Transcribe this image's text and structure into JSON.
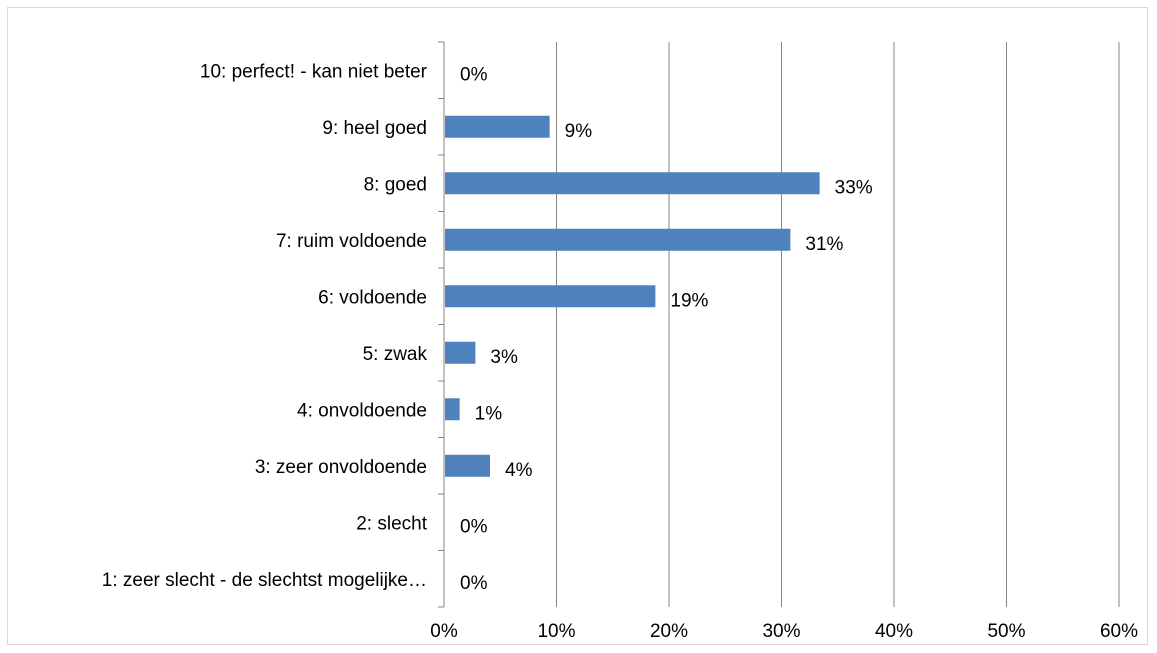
{
  "chart_data": {
    "type": "bar",
    "orientation": "horizontal",
    "categories": [
      "10: perfect! - kan niet beter",
      "9: heel goed",
      "8: goed",
      "7: ruim voldoende",
      "6: voldoende",
      "5: zwak",
      "4: onvoldoende",
      "3: zeer onvoldoende",
      "2: slecht",
      "1: zeer slecht - de slechtst mogelijke…"
    ],
    "values": [
      0,
      9.3,
      33.3,
      30.7,
      18.7,
      2.7,
      1.3,
      4.0,
      0,
      0
    ],
    "data_labels": [
      "0%",
      "9%",
      "33%",
      "31%",
      "19%",
      "3%",
      "1%",
      "4%",
      "0%",
      "0%"
    ],
    "x_ticks": [
      "0%",
      "10%",
      "20%",
      "30%",
      "40%",
      "50%",
      "60%"
    ],
    "xlim": [
      0,
      60
    ],
    "title": "",
    "xlabel": "",
    "ylabel": "",
    "grid": "vertical",
    "legend": "none",
    "bar_color": "#4f81bd",
    "grid_color": "#868686"
  }
}
